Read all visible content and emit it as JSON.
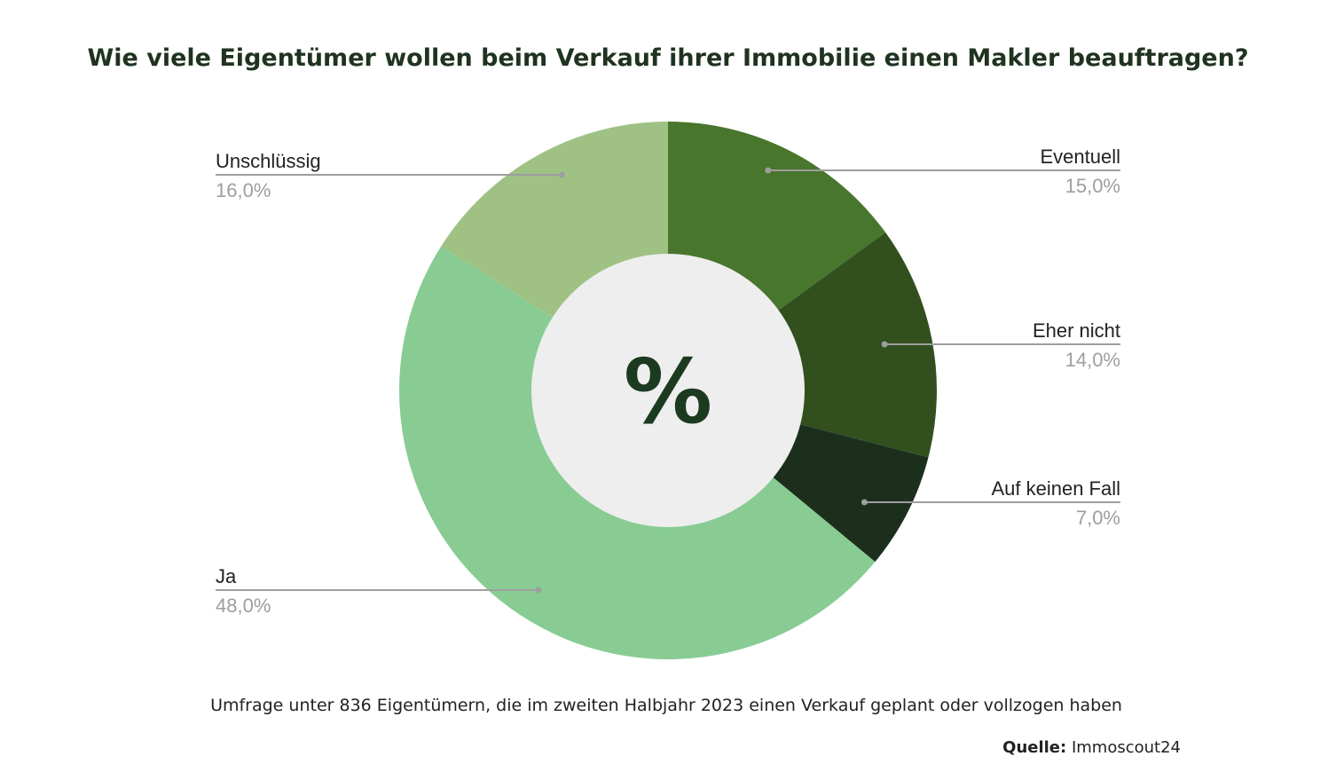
{
  "chart_data": {
    "type": "pie",
    "style": "donut",
    "title": "Wie viele Eigentümer wollen beim Verkauf ihrer Immobilie einen Makler beauftragen?",
    "center_symbol": "%",
    "slices": [
      {
        "label": "Eventuell",
        "value": 15.0,
        "value_label": "15,0%",
        "color": "#48762c"
      },
      {
        "label": "Eher nicht",
        "value": 14.0,
        "value_label": "14,0%",
        "color": "#32501e"
      },
      {
        "label": "Auf keinen Fall",
        "value": 7.0,
        "value_label": "7,0%",
        "color": "#1c2f1d"
      },
      {
        "label": "Ja",
        "value": 48.0,
        "value_label": "48,0%",
        "color": "#88cc94"
      },
      {
        "label": "Unschlüssig",
        "value": 16.0,
        "value_label": "16,0%",
        "color": "#9fc284"
      }
    ],
    "hole_color": "#eeeeee",
    "leader_color": "#9e9e9e",
    "footnote": "Umfrage unter 836 Eigentümern, die im zweiten Halbjahr 2023 einen Verkauf geplant oder vollzogen haben",
    "source_label": "Quelle:",
    "source_value": "Immoscout24"
  }
}
